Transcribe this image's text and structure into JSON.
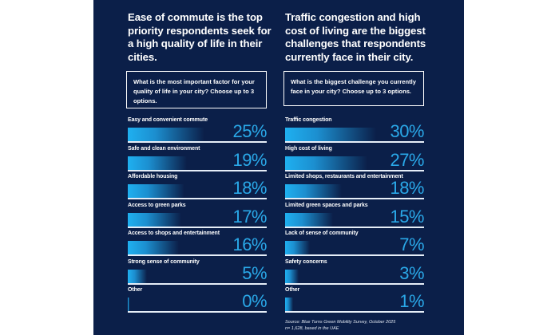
{
  "theme": {
    "panel_bg": "#0b1f49",
    "accent": "#2aa8e8",
    "bar_start": "#1fb0f0",
    "text": "#ffffff"
  },
  "left": {
    "headline": "Ease of commute is the top priority respondents seek for a high quality of life in their cities.",
    "question": "What  is the most important factor for your quality of life in your city? Choose up to 3 options."
  },
  "right": {
    "headline": "Traffic congestion and high cost of living are the biggest challenges that respondents currently face in their city.",
    "question": "What  is  the biggest challenge you currently face in your city? Choose up to 3 options."
  },
  "source": {
    "line1": "Source: Blue Turns Green Mobility Survey, October 2025",
    "line2": "n= 1,628, based in the UAE"
  },
  "chart_data": [
    {
      "type": "bar",
      "orientation": "horizontal",
      "title": "What  is the most important factor for your quality of life in your city? Choose up to 3 options.",
      "unit": "%",
      "categories": [
        "Easy and convenient commute",
        "Safe and clean environment",
        "Affordable housing",
        "Access to green parks",
        "Access to shops and entertainment",
        "Strong sense of community",
        "Other"
      ],
      "values": [
        25,
        19,
        18,
        17,
        16,
        5,
        0
      ],
      "labels": [
        "25%",
        "19%",
        "18%",
        "17%",
        "16%",
        "5%",
        "0%"
      ],
      "xlim": [
        0,
        30
      ]
    },
    {
      "type": "bar",
      "orientation": "horizontal",
      "title": "What  is  the biggest challenge you currently face in your city? Choose up to 3 options.",
      "unit": "%",
      "categories": [
        "Traffic congestion",
        "High cost of living",
        "Limited shops, restaurants and entertainment",
        "Limited green spaces and parks",
        "Lack of sense of community",
        "Safety concerns",
        "Other"
      ],
      "values": [
        30,
        27,
        18,
        15,
        7,
        3,
        1
      ],
      "labels": [
        "30%",
        "27%",
        "18%",
        "15%",
        "7%",
        "3%",
        "1%"
      ],
      "xlim": [
        0,
        30
      ]
    }
  ]
}
